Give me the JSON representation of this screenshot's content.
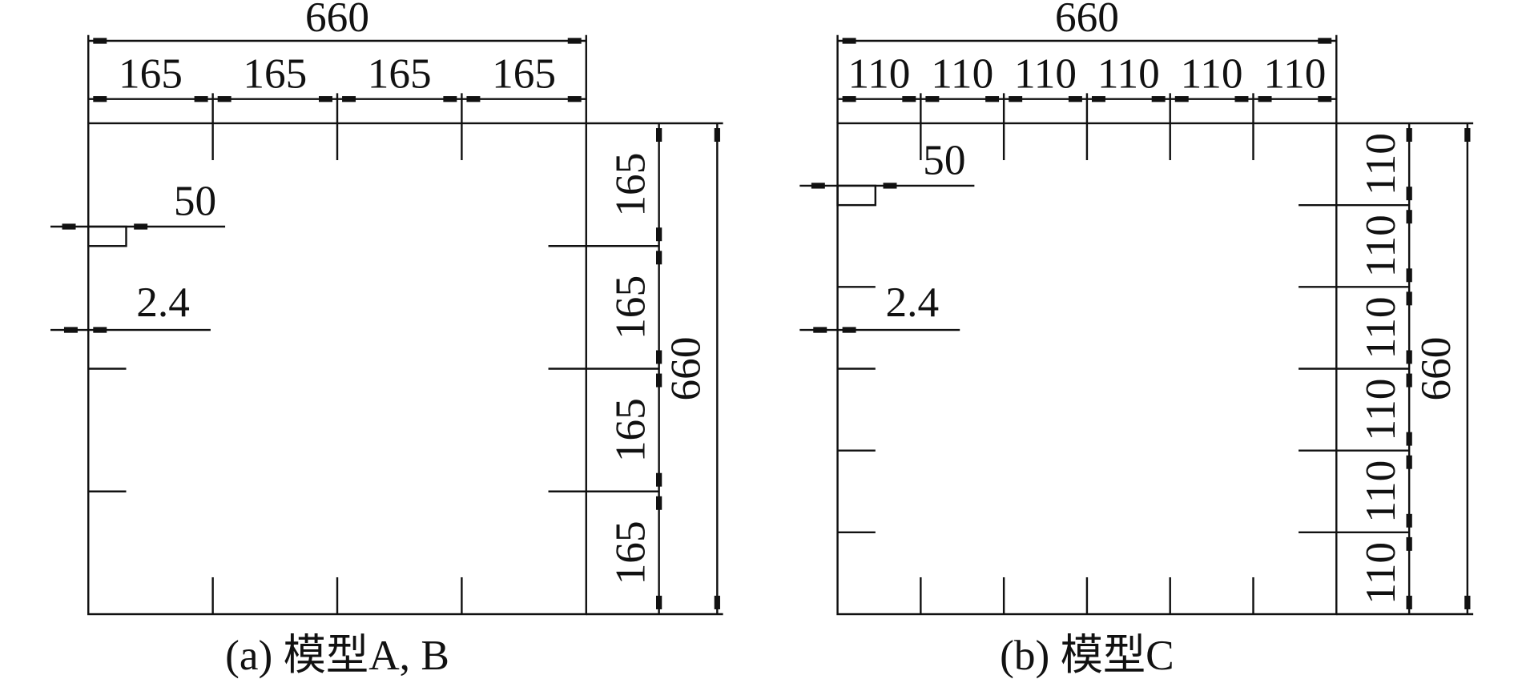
{
  "panels": [
    {
      "overall_top": "660",
      "top_dims": [
        "165",
        "165",
        "165",
        "165"
      ],
      "right_dims": [
        "165",
        "165",
        "165",
        "165"
      ],
      "overall_right": "660",
      "notch_label": "50",
      "gap_label": "2.4",
      "caption": "(a) 模型A, B"
    },
    {
      "overall_top": "660",
      "top_dims": [
        "110",
        "110",
        "110",
        "110",
        "110",
        "110"
      ],
      "right_dims": [
        "110",
        "110",
        "110",
        "110",
        "110",
        "110"
      ],
      "overall_right": "660",
      "notch_label": "50",
      "gap_label": "2.4",
      "caption": "(b) 模型C"
    }
  ]
}
